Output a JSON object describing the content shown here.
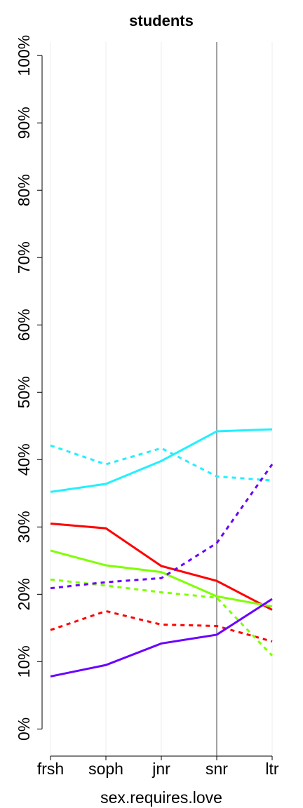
{
  "chart_data": {
    "type": "line",
    "title": "students",
    "x_label": "sex.requires.love",
    "categories": [
      "frsh",
      "soph",
      "jnr",
      "snr",
      "ltr"
    ],
    "ylim": [
      -3.4,
      102
    ],
    "yticks": [
      {
        "value": 0,
        "label": "0%"
      },
      {
        "value": 10,
        "label": "10%"
      },
      {
        "value": 20,
        "label": "20%"
      },
      {
        "value": 30,
        "label": "30%"
      },
      {
        "value": 40,
        "label": "40%"
      },
      {
        "value": 50,
        "label": "50%"
      },
      {
        "value": 60,
        "label": "60%"
      },
      {
        "value": 70,
        "label": "70%"
      },
      {
        "value": 80,
        "label": "80%"
      },
      {
        "value": 90,
        "label": "90%"
      },
      {
        "value": 100,
        "label": "100%"
      }
    ],
    "grid": true,
    "series": [
      {
        "color": "#22f0ff",
        "dashed": false,
        "values": [
          35.2,
          36.4,
          39.8,
          44.2,
          44.5
        ]
      },
      {
        "color": "#22f0ff",
        "dashed": true,
        "values": [
          42.1,
          39.3,
          41.7,
          37.5,
          36.9
        ]
      },
      {
        "color": "#ff0000",
        "dashed": false,
        "values": [
          30.5,
          29.8,
          24.2,
          22.0,
          17.7
        ]
      },
      {
        "color": "#ff0000",
        "dashed": true,
        "values": [
          14.7,
          17.5,
          15.5,
          15.3,
          13.0
        ]
      },
      {
        "color": "#7fff00",
        "dashed": false,
        "values": [
          26.5,
          24.3,
          23.3,
          19.7,
          18.2
        ]
      },
      {
        "color": "#7fff00",
        "dashed": true,
        "values": [
          22.2,
          21.3,
          20.3,
          19.5,
          10.9
        ]
      },
      {
        "color": "#6a00ff",
        "dashed": false,
        "values": [
          7.8,
          9.5,
          12.7,
          14.0,
          19.3
        ]
      },
      {
        "color": "#6a00ff",
        "dashed": true,
        "values": [
          20.9,
          21.8,
          22.4,
          27.6,
          39.3
        ]
      }
    ]
  }
}
